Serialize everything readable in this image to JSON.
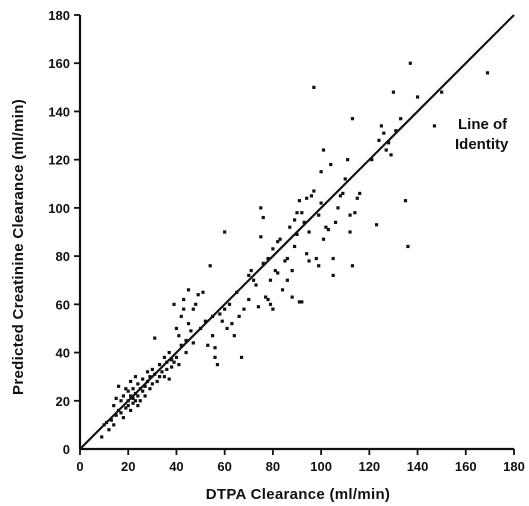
{
  "chart_data": {
    "type": "scatter",
    "title": "",
    "xlabel": "DTPA Clearance (ml/min)",
    "ylabel": "Predicted Creatinine Clearance (ml/min)",
    "xlim": [
      0,
      180
    ],
    "ylim": [
      0,
      180
    ],
    "x_ticks": [
      0,
      20,
      40,
      60,
      80,
      100,
      120,
      140,
      160,
      180
    ],
    "y_ticks": [
      20,
      40,
      60,
      80,
      100,
      120,
      140,
      160,
      180
    ],
    "grid": false,
    "reference_line": {
      "label_line1": "Line of",
      "label_line2": "Identity",
      "from": [
        0,
        0
      ],
      "to": [
        180,
        180
      ]
    },
    "points": [
      [
        9,
        5
      ],
      [
        10,
        10
      ],
      [
        11,
        11
      ],
      [
        12,
        8
      ],
      [
        13,
        12
      ],
      [
        14,
        10
      ],
      [
        14,
        18
      ],
      [
        15,
        14
      ],
      [
        15,
        21
      ],
      [
        16,
        16
      ],
      [
        16,
        26
      ],
      [
        17,
        15
      ],
      [
        17,
        20
      ],
      [
        18,
        13
      ],
      [
        18,
        22
      ],
      [
        19,
        17
      ],
      [
        19,
        25
      ],
      [
        20,
        18
      ],
      [
        20,
        20
      ],
      [
        20,
        24
      ],
      [
        21,
        16
      ],
      [
        21,
        22
      ],
      [
        21,
        28
      ],
      [
        22,
        19
      ],
      [
        22,
        21
      ],
      [
        22,
        25
      ],
      [
        23,
        20
      ],
      [
        23,
        23
      ],
      [
        23,
        30
      ],
      [
        24,
        22
      ],
      [
        24,
        18
      ],
      [
        24,
        27
      ],
      [
        25,
        25
      ],
      [
        25,
        20
      ],
      [
        26,
        24
      ],
      [
        26,
        29
      ],
      [
        27,
        22
      ],
      [
        27,
        26
      ],
      [
        28,
        28
      ],
      [
        28,
        32
      ],
      [
        29,
        25
      ],
      [
        29,
        30
      ],
      [
        30,
        27
      ],
      [
        30,
        33
      ],
      [
        31,
        31
      ],
      [
        31,
        46
      ],
      [
        32,
        28
      ],
      [
        33,
        30
      ],
      [
        33,
        35
      ],
      [
        34,
        32
      ],
      [
        35,
        30
      ],
      [
        35,
        38
      ],
      [
        36,
        36
      ],
      [
        36,
        33
      ],
      [
        37,
        40
      ],
      [
        37,
        29
      ],
      [
        38,
        34
      ],
      [
        38,
        37
      ],
      [
        39,
        36
      ],
      [
        39,
        60
      ],
      [
        40,
        38
      ],
      [
        40,
        50
      ],
      [
        41,
        47
      ],
      [
        41,
        35
      ],
      [
        42,
        43
      ],
      [
        42,
        55
      ],
      [
        43,
        58
      ],
      [
        43,
        62
      ],
      [
        44,
        45
      ],
      [
        44,
        40
      ],
      [
        45,
        52
      ],
      [
        45,
        66
      ],
      [
        46,
        49
      ],
      [
        47,
        44
      ],
      [
        47,
        58
      ],
      [
        48,
        60
      ],
      [
        49,
        64
      ],
      [
        50,
        50
      ],
      [
        51,
        65
      ],
      [
        52,
        53
      ],
      [
        53,
        43
      ],
      [
        54,
        76
      ],
      [
        55,
        47
      ],
      [
        55,
        55
      ],
      [
        56,
        38
      ],
      [
        56,
        42
      ],
      [
        57,
        35
      ],
      [
        58,
        56
      ],
      [
        59,
        53
      ],
      [
        60,
        58
      ],
      [
        60,
        90
      ],
      [
        61,
        50
      ],
      [
        62,
        60
      ],
      [
        63,
        52
      ],
      [
        64,
        47
      ],
      [
        65,
        65
      ],
      [
        66,
        55
      ],
      [
        67,
        38
      ],
      [
        68,
        58
      ],
      [
        70,
        62
      ],
      [
        70,
        72
      ],
      [
        71,
        74
      ],
      [
        72,
        70
      ],
      [
        73,
        68
      ],
      [
        74,
        59
      ],
      [
        75,
        88
      ],
      [
        75,
        100
      ],
      [
        76,
        77
      ],
      [
        76,
        96
      ],
      [
        77,
        63
      ],
      [
        78,
        62
      ],
      [
        78,
        79
      ],
      [
        79,
        60
      ],
      [
        79,
        70
      ],
      [
        80,
        58
      ],
      [
        80,
        83
      ],
      [
        81,
        74
      ],
      [
        82,
        73
      ],
      [
        82,
        86
      ],
      [
        83,
        87
      ],
      [
        84,
        66
      ],
      [
        85,
        78
      ],
      [
        86,
        70
      ],
      [
        86,
        79
      ],
      [
        87,
        92
      ],
      [
        88,
        63
      ],
      [
        88,
        74
      ],
      [
        89,
        84
      ],
      [
        89,
        95
      ],
      [
        90,
        98
      ],
      [
        90,
        89
      ],
      [
        91,
        61
      ],
      [
        91,
        103
      ],
      [
        92,
        61
      ],
      [
        92,
        98
      ],
      [
        93,
        94
      ],
      [
        94,
        104
      ],
      [
        94,
        81
      ],
      [
        95,
        90
      ],
      [
        95,
        78
      ],
      [
        96,
        105
      ],
      [
        97,
        150
      ],
      [
        97,
        107
      ],
      [
        98,
        79
      ],
      [
        99,
        97
      ],
      [
        99,
        76
      ],
      [
        100,
        102
      ],
      [
        100,
        115
      ],
      [
        101,
        87
      ],
      [
        101,
        124
      ],
      [
        102,
        92
      ],
      [
        103,
        91
      ],
      [
        104,
        118
      ],
      [
        105,
        79
      ],
      [
        105,
        72
      ],
      [
        106,
        94
      ],
      [
        107,
        100
      ],
      [
        108,
        105
      ],
      [
        109,
        106
      ],
      [
        110,
        112
      ],
      [
        111,
        120
      ],
      [
        112,
        97
      ],
      [
        112,
        90
      ],
      [
        113,
        137
      ],
      [
        113,
        76
      ],
      [
        114,
        98
      ],
      [
        115,
        104
      ],
      [
        116,
        106
      ],
      [
        121,
        120
      ],
      [
        123,
        93
      ],
      [
        124,
        128
      ],
      [
        125,
        134
      ],
      [
        126,
        131
      ],
      [
        127,
        124
      ],
      [
        128,
        127
      ],
      [
        129,
        122
      ],
      [
        130,
        148
      ],
      [
        131,
        132
      ],
      [
        133,
        137
      ],
      [
        135,
        103
      ],
      [
        136,
        84
      ],
      [
        137,
        160
      ],
      [
        140,
        146
      ],
      [
        147,
        134
      ],
      [
        150,
        148
      ],
      [
        169,
        156
      ]
    ]
  }
}
